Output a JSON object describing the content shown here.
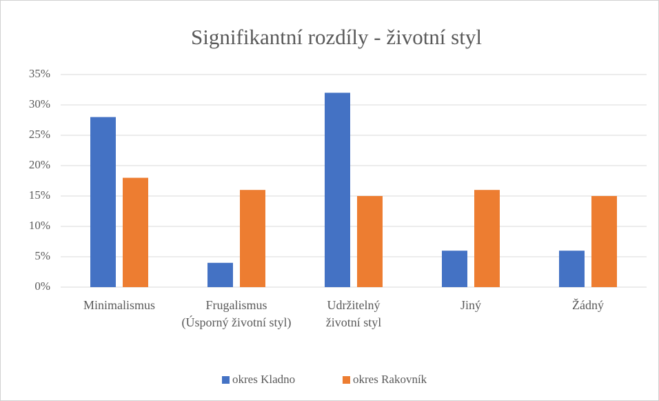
{
  "chart_data": {
    "type": "bar",
    "title": "Signifikantní rozdíly - životní styl",
    "categories": [
      "Minimalismus",
      "Frugalismus (Úsporný životní styl)",
      "Udržitelný životní styl",
      "Jiný",
      "Žádný"
    ],
    "series": [
      {
        "name": "okres Kladno",
        "color": "#4472c4",
        "values": [
          28,
          4,
          32,
          6,
          6
        ]
      },
      {
        "name": "okres Rakovník",
        "color": "#ed7d31",
        "values": [
          18,
          16,
          15,
          16,
          15
        ]
      }
    ],
    "ylim": [
      0,
      35
    ],
    "yticks": [
      {
        "value": 0,
        "label": "0%"
      },
      {
        "value": 5,
        "label": "5%"
      },
      {
        "value": 10,
        "label": "10%"
      },
      {
        "value": 15,
        "label": "15%"
      },
      {
        "value": 20,
        "label": "20%"
      },
      {
        "value": 25,
        "label": "25%"
      },
      {
        "value": 30,
        "label": "30%"
      },
      {
        "value": 35,
        "label": "35%"
      }
    ],
    "grid": true,
    "legend": "bottom"
  }
}
